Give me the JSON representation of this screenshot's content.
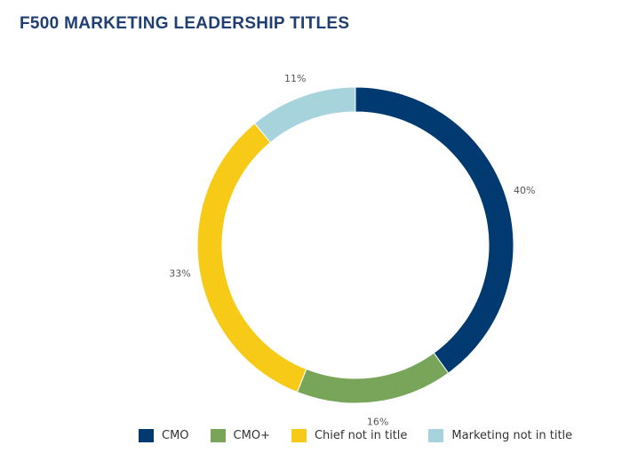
{
  "chart_data": {
    "type": "pie",
    "title": "F500 MARKETING LEADERSHIP TITLES",
    "categories": [
      "CMO",
      "CMO+",
      "Chief not in title",
      "Marketing not in title"
    ],
    "values": [
      40,
      16,
      33,
      11
    ],
    "labels": [
      "40%",
      "16%",
      "33%",
      "11%"
    ],
    "colors": [
      "#003a70",
      "#78a55a",
      "#f7ca18",
      "#a7d3dd"
    ],
    "donut": true,
    "legend_placement": "bottom"
  }
}
